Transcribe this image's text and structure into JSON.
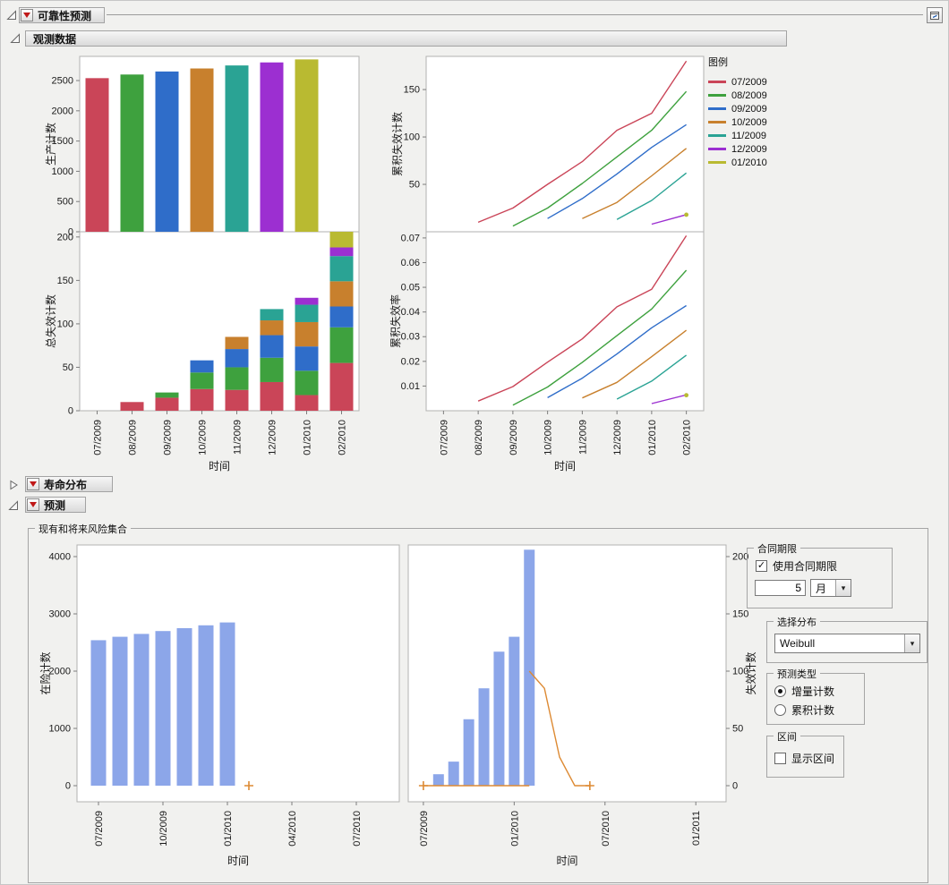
{
  "root": {
    "title": "可靠性预测"
  },
  "sections": {
    "observed": "观测数据",
    "life": "寿命分布",
    "forecast": "预测",
    "risk_group": "现有和将来风险集合"
  },
  "legend": {
    "title": "图例",
    "entries": [
      {
        "label": "07/2009",
        "color": "#CA4558"
      },
      {
        "label": "08/2009",
        "color": "#3EA13E"
      },
      {
        "label": "09/2009",
        "color": "#2F6DC9"
      },
      {
        "label": "10/2009",
        "color": "#C8802D"
      },
      {
        "label": "11/2009",
        "color": "#2AA394"
      },
      {
        "label": "12/2009",
        "color": "#9C2FD1"
      },
      {
        "label": "01/2010",
        "color": "#B9BA31"
      }
    ]
  },
  "controls": {
    "contract": {
      "title": "合同期限",
      "use_label": "使用合同期限",
      "use_checked": true,
      "length_value": "5",
      "unit_value": "月"
    },
    "distribution": {
      "title": "选择分布",
      "value": "Weibull"
    },
    "forecast_type": {
      "title": "预测类型",
      "options": [
        {
          "label": "增量计数",
          "selected": true
        },
        {
          "label": "累积计数",
          "selected": false
        }
      ]
    },
    "interval": {
      "title": "区间",
      "show_label": "显示区间",
      "checked": false
    }
  },
  "chart_data": [
    {
      "id": "production_counts",
      "type": "bar",
      "ylabel": "生产计数",
      "categories": [
        "07/2009",
        "08/2009",
        "09/2009",
        "10/2009",
        "11/2009",
        "12/2009",
        "01/2010",
        "02/2010"
      ],
      "values": [
        2540,
        2600,
        2650,
        2700,
        2750,
        2800,
        2850,
        null
      ],
      "bar_colors": [
        "#CA4558",
        "#3EA13E",
        "#2F6DC9",
        "#C8802D",
        "#2AA394",
        "#9C2FD1",
        "#B9BA31"
      ],
      "ylim": [
        0,
        2900
      ],
      "yticks": [
        0,
        500,
        1000,
        1500,
        2000,
        2500
      ]
    },
    {
      "id": "total_failure_counts",
      "type": "stacked_bar",
      "ylabel": "总失效计数",
      "xlabel": "时间",
      "categories": [
        "07/2009",
        "08/2009",
        "09/2009",
        "10/2009",
        "11/2009",
        "12/2009",
        "01/2010",
        "02/2010"
      ],
      "series": [
        {
          "name": "07/2009",
          "color": "#CA4558",
          "values": [
            0,
            10,
            15,
            25,
            24,
            33,
            18,
            55
          ]
        },
        {
          "name": "08/2009",
          "color": "#3EA13E",
          "values": [
            0,
            0,
            6,
            19,
            26,
            28,
            28,
            41
          ]
        },
        {
          "name": "09/2009",
          "color": "#2F6DC9",
          "values": [
            0,
            0,
            0,
            14,
            21,
            26,
            28,
            24
          ]
        },
        {
          "name": "10/2009",
          "color": "#C8802D",
          "values": [
            0,
            0,
            0,
            0,
            14,
            17,
            28,
            29
          ]
        },
        {
          "name": "11/2009",
          "color": "#2AA394",
          "values": [
            0,
            0,
            0,
            0,
            0,
            13,
            20,
            29
          ]
        },
        {
          "name": "12/2009",
          "color": "#9C2FD1",
          "values": [
            0,
            0,
            0,
            0,
            0,
            0,
            8,
            10
          ]
        },
        {
          "name": "01/2010",
          "color": "#B9BA31",
          "values": [
            0,
            0,
            0,
            0,
            0,
            0,
            0,
            18
          ]
        }
      ],
      "ylim": [
        0,
        206
      ],
      "yticks": [
        0,
        50,
        100,
        150,
        200
      ]
    },
    {
      "id": "cumulative_failure_counts",
      "type": "line",
      "ylabel": "累积失效计数",
      "categories": [
        "07/2009",
        "08/2009",
        "09/2009",
        "10/2009",
        "11/2009",
        "12/2009",
        "01/2010",
        "02/2010"
      ],
      "series": [
        {
          "name": "07/2009",
          "color": "#CA4558",
          "values": [
            null,
            10,
            25,
            50,
            74,
            107,
            125,
            180
          ]
        },
        {
          "name": "08/2009",
          "color": "#3EA13E",
          "values": [
            null,
            null,
            6,
            25,
            51,
            79,
            107,
            148
          ]
        },
        {
          "name": "09/2009",
          "color": "#2F6DC9",
          "values": [
            null,
            null,
            null,
            14,
            35,
            61,
            89,
            113
          ]
        },
        {
          "name": "10/2009",
          "color": "#C8802D",
          "values": [
            null,
            null,
            null,
            null,
            14,
            31,
            59,
            88
          ]
        },
        {
          "name": "11/2009",
          "color": "#2AA394",
          "values": [
            null,
            null,
            null,
            null,
            null,
            13,
            33,
            62
          ]
        },
        {
          "name": "12/2009",
          "color": "#9C2FD1",
          "values": [
            null,
            null,
            null,
            null,
            null,
            null,
            8,
            18
          ]
        },
        {
          "name": "01/2010",
          "color": "#B9BA31",
          "values": [
            null,
            null,
            null,
            null,
            null,
            null,
            null,
            18
          ]
        }
      ],
      "ylim": [
        0,
        185
      ],
      "yticks": [
        50,
        100,
        150
      ]
    },
    {
      "id": "cumulative_failure_rate",
      "type": "line",
      "ylabel": "累积失效率",
      "xlabel": "时间",
      "categories": [
        "07/2009",
        "08/2009",
        "09/2009",
        "10/2009",
        "11/2009",
        "12/2009",
        "01/2010",
        "02/2010"
      ],
      "series": [
        {
          "name": "07/2009",
          "color": "#CA4558",
          "values": [
            null,
            0.0039,
            0.0098,
            0.0197,
            0.0291,
            0.0421,
            0.0492,
            0.0709
          ]
        },
        {
          "name": "08/2009",
          "color": "#3EA13E",
          "values": [
            null,
            null,
            0.0023,
            0.0096,
            0.0196,
            0.0304,
            0.0412,
            0.0569
          ]
        },
        {
          "name": "09/2009",
          "color": "#2F6DC9",
          "values": [
            null,
            null,
            null,
            0.0053,
            0.0132,
            0.023,
            0.0336,
            0.0426
          ]
        },
        {
          "name": "10/2009",
          "color": "#C8802D",
          "values": [
            null,
            null,
            null,
            null,
            0.0052,
            0.0115,
            0.0219,
            0.0326
          ]
        },
        {
          "name": "11/2009",
          "color": "#2AA394",
          "values": [
            null,
            null,
            null,
            null,
            null,
            0.0047,
            0.012,
            0.0225
          ]
        },
        {
          "name": "12/2009",
          "color": "#9C2FD1",
          "values": [
            null,
            null,
            null,
            null,
            null,
            null,
            0.0029,
            0.0064
          ]
        },
        {
          "name": "01/2010",
          "color": "#B9BA31",
          "values": [
            null,
            null,
            null,
            null,
            null,
            null,
            null,
            0.0063
          ]
        }
      ],
      "ylim": [
        0,
        0.0725
      ],
      "yticks": [
        0.01,
        0.02,
        0.03,
        0.04,
        0.05,
        0.06,
        0.07
      ],
      "ytick_labels": [
        "0.01",
        "0.02",
        "0.03",
        "0.04",
        "0.05",
        "0.06",
        "0.07"
      ]
    },
    {
      "id": "risk_set",
      "type": "time_bar",
      "ylabel": "在险计数",
      "xlabel": "时间",
      "bar_color": "#8CA6E9",
      "marker_color": "#DD8A33",
      "bars": {
        "months": [
          "07/2009",
          "08/2009",
          "09/2009",
          "10/2009",
          "11/2009",
          "12/2009",
          "01/2010"
        ],
        "values": [
          2540,
          2600,
          2650,
          2700,
          2750,
          2800,
          2850
        ]
      },
      "plus_markers": [
        {
          "month": "02/2010",
          "value": 0
        }
      ],
      "xticks": [
        "07/2009",
        "10/2009",
        "01/2010",
        "04/2010",
        "07/2010"
      ],
      "ylim": [
        0,
        4000
      ],
      "yticks": [
        0,
        1000,
        2000,
        3000,
        4000
      ]
    },
    {
      "id": "forecast_failures",
      "type": "time_bar_line",
      "ylabel": "失效计数",
      "xlabel": "时间",
      "bar_color": "#8CA6E9",
      "line_color": "#DD8A33",
      "bars": {
        "months": [
          "08/2009",
          "09/2009",
          "10/2009",
          "11/2009",
          "12/2009",
          "01/2010",
          "02/2010"
        ],
        "values": [
          10,
          21,
          58,
          85,
          117,
          130,
          206
        ]
      },
      "zero_line": {
        "from": "07/2009",
        "to": "02/2010",
        "value": 0
      },
      "forecast_line": {
        "months": [
          "02/2010",
          "03/2010",
          "04/2010",
          "05/2010",
          "06/2010"
        ],
        "values": [
          100,
          85,
          25,
          0,
          0
        ]
      },
      "plus_markers": [
        {
          "month": "07/2009",
          "value": 0
        },
        {
          "month": "06/2010",
          "value": 0
        }
      ],
      "xticks": [
        "07/2009",
        "01/2010",
        "07/2010",
        "01/2011"
      ],
      "ylim": [
        0,
        200
      ],
      "yticks": [
        0,
        50,
        100,
        150,
        200
      ]
    }
  ]
}
